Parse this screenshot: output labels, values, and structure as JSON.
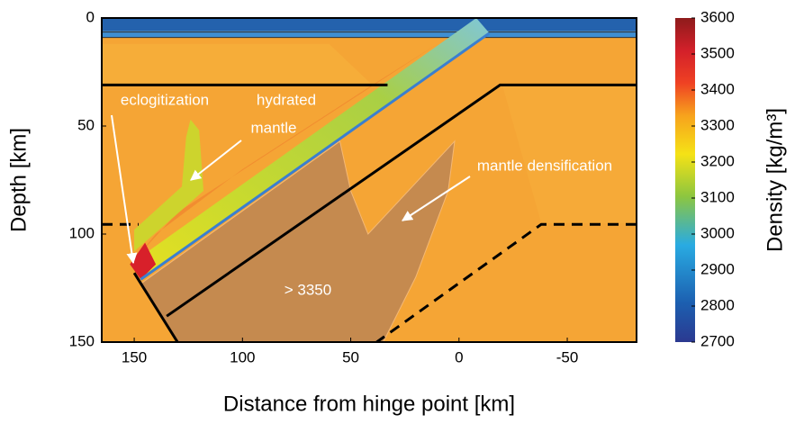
{
  "chart_data": {
    "type": "density-section",
    "xlabel": "Distance from hinge point [km]",
    "ylabel": "Depth [km]",
    "xlim": [
      165,
      -82
    ],
    "xticks": [
      150,
      100,
      50,
      0,
      -50
    ],
    "ylim": [
      0,
      150
    ],
    "yticks": [
      0,
      50,
      100,
      150
    ],
    "colorbar": {
      "label": "Density [kg/m³]",
      "lim": [
        2700,
        3600
      ],
      "ticks": [
        2700,
        2800,
        2900,
        3000,
        3100,
        3200,
        3300,
        3400,
        3500,
        3600
      ]
    },
    "annotations": [
      "eclogitization",
      "hydrated",
      "mantle",
      "mantle densification",
      "> 3350"
    ]
  }
}
